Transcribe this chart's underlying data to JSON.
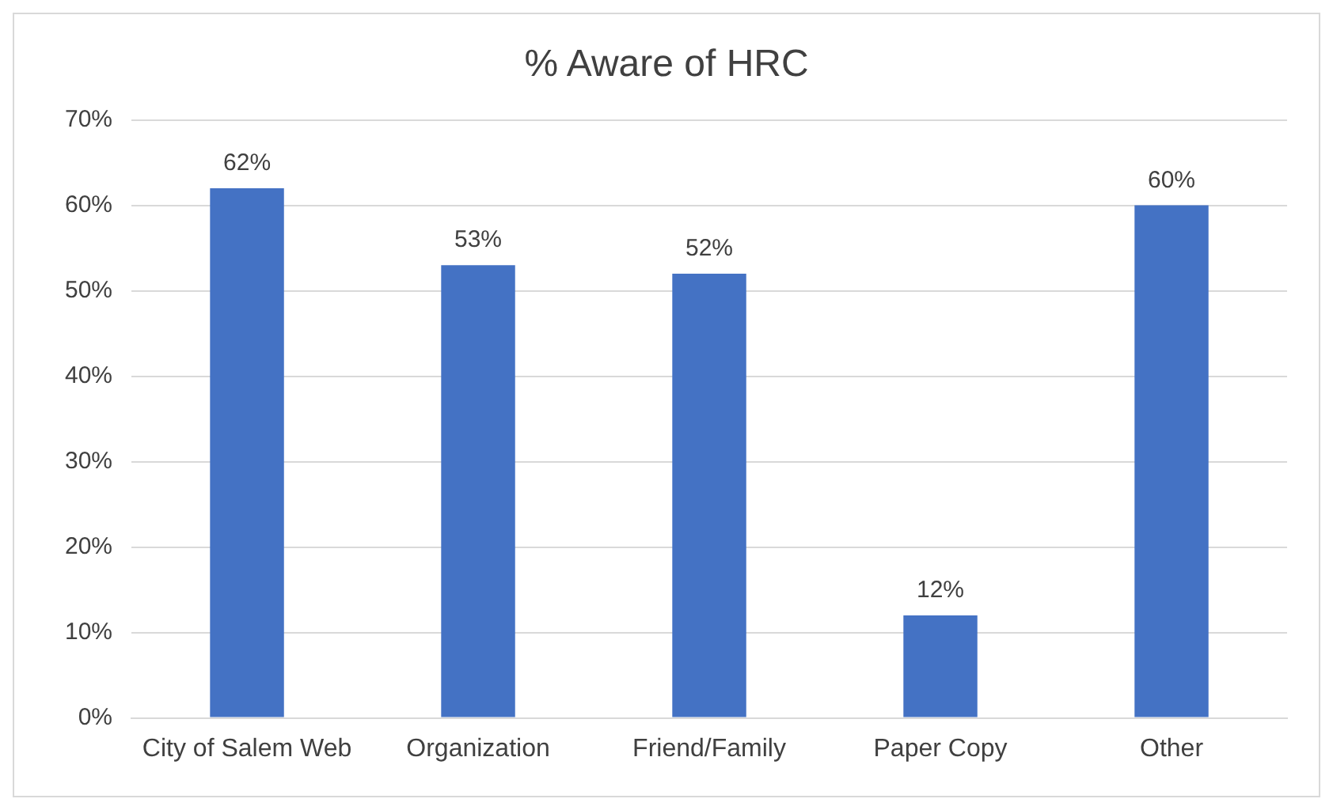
{
  "chart_data": {
    "type": "bar",
    "title": "% Aware of HRC",
    "categories": [
      "City of Salem Web",
      "Organization",
      "Friend/Family",
      "Paper Copy",
      "Other"
    ],
    "values": [
      62,
      53,
      52,
      12,
      60
    ],
    "value_labels": [
      "62%",
      "53%",
      "52%",
      "12%",
      "60%"
    ],
    "color": "#4472c4",
    "ylim": [
      0,
      70
    ],
    "yticks": [
      {
        "value": 0,
        "label": "0%"
      },
      {
        "value": 10,
        "label": "10%"
      },
      {
        "value": 20,
        "label": "20%"
      },
      {
        "value": 30,
        "label": "30%"
      },
      {
        "value": 40,
        "label": "40%"
      },
      {
        "value": 50,
        "label": "50%"
      },
      {
        "value": 60,
        "label": "60%"
      },
      {
        "value": 70,
        "label": "70%"
      }
    ],
    "grid": "y",
    "legend": false
  }
}
